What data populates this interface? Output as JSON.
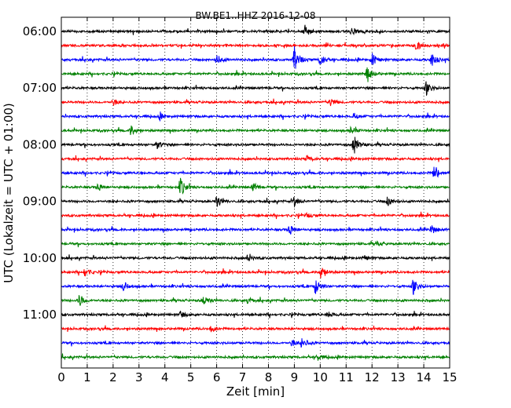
{
  "chart_data": {
    "type": "line",
    "subtype": "helicorder",
    "title": "BW.BE1..HHZ 2016-12-08",
    "xlabel": "Zeit  [min]",
    "ylabel": "UTC (Lokalzeit = UTC + 01:00)",
    "xlim": [
      0,
      15
    ],
    "x_ticks": [
      "0",
      "1",
      "2",
      "3",
      "4",
      "5",
      "6",
      "7",
      "8",
      "9",
      "10",
      "11",
      "12",
      "13",
      "14",
      "15"
    ],
    "y_ticks": [
      "06:00",
      "07:00",
      "08:00",
      "09:00",
      "10:00",
      "11:00"
    ],
    "trace_start": "06:00",
    "trace_interval_min": 15,
    "trace_colors": [
      "#000000",
      "#ff0000",
      "#0000ff",
      "#008000"
    ],
    "vertical_grid": "dotted",
    "horizontal_grid": false,
    "traces": [
      {
        "start": "06:00",
        "events": [
          {
            "x": 9.4,
            "amp": 0.8
          },
          {
            "x": 11.2,
            "amp": 0.4
          }
        ]
      },
      {
        "start": "06:15",
        "events": [
          {
            "x": 13.7,
            "amp": 0.6
          }
        ]
      },
      {
        "start": "06:30",
        "events": [
          {
            "x": 6.0,
            "amp": 0.6
          },
          {
            "x": 9.0,
            "amp": 1.6
          },
          {
            "x": 10.0,
            "amp": 0.8
          },
          {
            "x": 12.0,
            "amp": 0.8
          },
          {
            "x": 14.3,
            "amp": 0.9
          }
        ]
      },
      {
        "start": "06:45",
        "events": [
          {
            "x": 11.8,
            "amp": 1.0
          }
        ]
      },
      {
        "start": "07:00",
        "events": [
          {
            "x": 14.1,
            "amp": 0.9
          }
        ]
      },
      {
        "start": "07:15",
        "events": [
          {
            "x": 2.0,
            "amp": 0.4
          },
          {
            "x": 10.4,
            "amp": 0.5
          }
        ]
      },
      {
        "start": "07:30",
        "events": [
          {
            "x": 3.8,
            "amp": 0.4
          },
          {
            "x": 11.3,
            "amp": 0.4
          }
        ]
      },
      {
        "start": "07:45",
        "events": [
          {
            "x": 2.7,
            "amp": 0.7
          },
          {
            "x": 11.2,
            "amp": 0.5
          }
        ]
      },
      {
        "start": "08:00",
        "events": [
          {
            "x": 3.7,
            "amp": 0.5
          },
          {
            "x": 11.3,
            "amp": 1.3
          }
        ]
      },
      {
        "start": "08:15",
        "events": [
          {
            "x": 9.5,
            "amp": 0.4
          }
        ]
      },
      {
        "start": "08:30",
        "events": [
          {
            "x": 14.4,
            "amp": 1.1
          }
        ]
      },
      {
        "start": "08:45",
        "events": [
          {
            "x": 1.4,
            "amp": 0.5
          },
          {
            "x": 4.6,
            "amp": 1.2
          },
          {
            "x": 7.4,
            "amp": 0.5
          }
        ]
      },
      {
        "start": "09:00",
        "events": [
          {
            "x": 6.0,
            "amp": 0.7
          },
          {
            "x": 9.0,
            "amp": 0.6
          },
          {
            "x": 12.6,
            "amp": 0.6
          }
        ]
      },
      {
        "start": "09:15",
        "events": [
          {
            "x": 9.5,
            "amp": 0.3
          }
        ]
      },
      {
        "start": "09:30",
        "events": [
          {
            "x": 8.8,
            "amp": 0.7
          },
          {
            "x": 14.3,
            "amp": 0.5
          }
        ]
      },
      {
        "start": "09:45",
        "events": [
          {
            "x": 12.2,
            "amp": 0.3
          }
        ]
      },
      {
        "start": "10:00",
        "events": [
          {
            "x": 7.2,
            "amp": 0.4
          },
          {
            "x": 11.7,
            "amp": 0.3
          }
        ]
      },
      {
        "start": "10:15",
        "events": [
          {
            "x": 0.9,
            "amp": 0.6
          },
          {
            "x": 10.0,
            "amp": 1.0
          }
        ]
      },
      {
        "start": "10:30",
        "events": [
          {
            "x": 2.4,
            "amp": 0.6
          },
          {
            "x": 9.8,
            "amp": 1.1
          },
          {
            "x": 13.6,
            "amp": 1.1
          }
        ]
      },
      {
        "start": "10:45",
        "events": [
          {
            "x": 0.7,
            "amp": 0.8
          },
          {
            "x": 5.5,
            "amp": 0.6
          },
          {
            "x": 7.2,
            "amp": 0.4
          }
        ]
      },
      {
        "start": "11:00",
        "events": [
          {
            "x": 4.6,
            "amp": 0.4
          },
          {
            "x": 10.3,
            "amp": 0.4
          }
        ]
      },
      {
        "start": "11:15",
        "events": [
          {
            "x": 5.8,
            "amp": 0.4
          }
        ]
      },
      {
        "start": "11:30",
        "events": [
          {
            "x": 9.3,
            "amp": 0.7
          },
          {
            "x": 8.9,
            "amp": 0.4
          }
        ]
      },
      {
        "start": "11:45",
        "events": [
          {
            "x": 9.9,
            "amp": 0.4
          }
        ]
      }
    ]
  }
}
